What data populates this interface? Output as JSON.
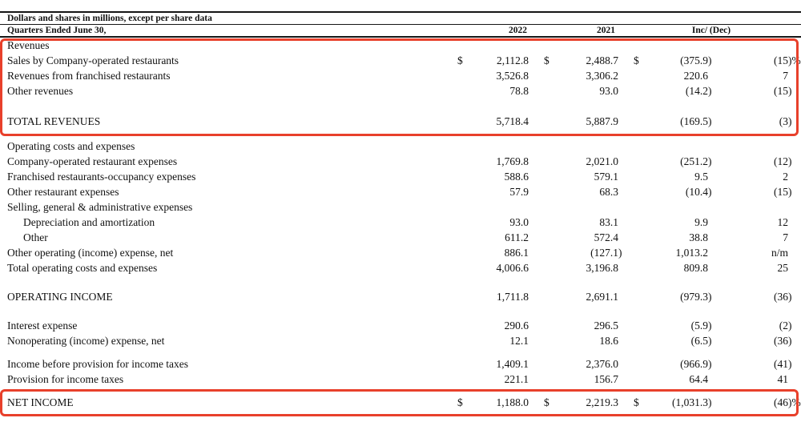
{
  "document": {
    "note": "Dollars and shares in millions, except per share data",
    "period_label": "Quarters Ended June 30,",
    "columns": {
      "col_2022": "2022",
      "col_2021": "2021",
      "col_change": "Inc/ (Dec)"
    },
    "highlight_color": "#e8402b",
    "highlights": [
      "revenues-section",
      "net-income-row"
    ]
  },
  "table": {
    "rows": [
      {
        "type": "section",
        "label": "Revenues"
      },
      {
        "type": "data",
        "label": "Sales by Company-operated restaurants",
        "d1": "$",
        "v2022": "2,112.8",
        "d2": "$",
        "v2021": "2,488.7",
        "d3": "$",
        "vinc": "(375.9)",
        "vpct": "(15)%"
      },
      {
        "type": "data",
        "label": "Revenues from franchised restaurants",
        "v2022": "3,526.8",
        "v2021": "3,306.2",
        "vinc": "220.6",
        "vpct": "7"
      },
      {
        "type": "data",
        "label": "Other revenues",
        "v2022": "78.8",
        "v2021": "93.0",
        "vinc": "(14.2)",
        "vpct": "(15)"
      },
      {
        "type": "spacer",
        "h": 19
      },
      {
        "type": "data",
        "label": "TOTAL REVENUES",
        "v2022": "5,718.4",
        "v2021": "5,887.9",
        "vinc": "(169.5)",
        "vpct": "(3)"
      },
      {
        "type": "spacer",
        "h": 12
      },
      {
        "type": "section",
        "label": "Operating costs and expenses"
      },
      {
        "type": "data",
        "label": "Company-operated restaurant expenses",
        "v2022": "1,769.8",
        "v2021": "2,021.0",
        "vinc": "(251.2)",
        "vpct": "(12)"
      },
      {
        "type": "data",
        "label": "Franchised restaurants-occupancy expenses",
        "v2022": "588.6",
        "v2021": "579.1",
        "vinc": "9.5",
        "vpct": "2"
      },
      {
        "type": "data",
        "label": "Other restaurant expenses",
        "v2022": "57.9",
        "v2021": "68.3",
        "vinc": "(10.4)",
        "vpct": "(15)"
      },
      {
        "type": "section",
        "label": "Selling, general & administrative expenses"
      },
      {
        "type": "data",
        "indent": true,
        "label": "Depreciation and amortization",
        "v2022": "93.0",
        "v2021": "83.1",
        "vinc": "9.9",
        "vpct": "12"
      },
      {
        "type": "data",
        "indent": true,
        "label": "Other",
        "v2022": "611.2",
        "v2021": "572.4",
        "vinc": "38.8",
        "vpct": "7"
      },
      {
        "type": "data",
        "label": "Other operating (income) expense, net",
        "v2022": "886.1",
        "v2021": "(127.1)",
        "vinc": "1,013.2",
        "vpct": "n/m"
      },
      {
        "type": "data",
        "label": "Total operating costs and expenses",
        "v2022": "4,006.6",
        "v2021": "3,196.8",
        "vinc": "809.8",
        "vpct": "25"
      },
      {
        "type": "spacer",
        "h": 17
      },
      {
        "type": "data",
        "label": "OPERATING INCOME",
        "v2022": "1,711.8",
        "v2021": "2,691.1",
        "vinc": "(979.3)",
        "vpct": "(36)"
      },
      {
        "type": "spacer",
        "h": 17
      },
      {
        "type": "data",
        "label": "Interest expense",
        "v2022": "290.6",
        "v2021": "296.5",
        "vinc": "(5.9)",
        "vpct": "(2)"
      },
      {
        "type": "data",
        "label": "Nonoperating (income) expense, net",
        "v2022": "12.1",
        "v2021": "18.6",
        "vinc": "(6.5)",
        "vpct": "(36)"
      },
      {
        "type": "spacer",
        "h": 10
      },
      {
        "type": "data",
        "label": "Income before provision for income taxes",
        "v2022": "1,409.1",
        "v2021": "2,376.0",
        "vinc": "(966.9)",
        "vpct": "(41)"
      },
      {
        "type": "data",
        "label": "Provision for income taxes",
        "v2022": "221.1",
        "v2021": "156.7",
        "vinc": "64.4",
        "vpct": "41"
      },
      {
        "type": "spacer",
        "h": 10
      },
      {
        "type": "data",
        "label": "NET INCOME",
        "d1": "$",
        "v2022": "1,188.0",
        "d2": "$",
        "v2021": "2,219.3",
        "d3": "$",
        "vinc": "(1,031.3)",
        "vpct": "(46)%"
      }
    ]
  }
}
